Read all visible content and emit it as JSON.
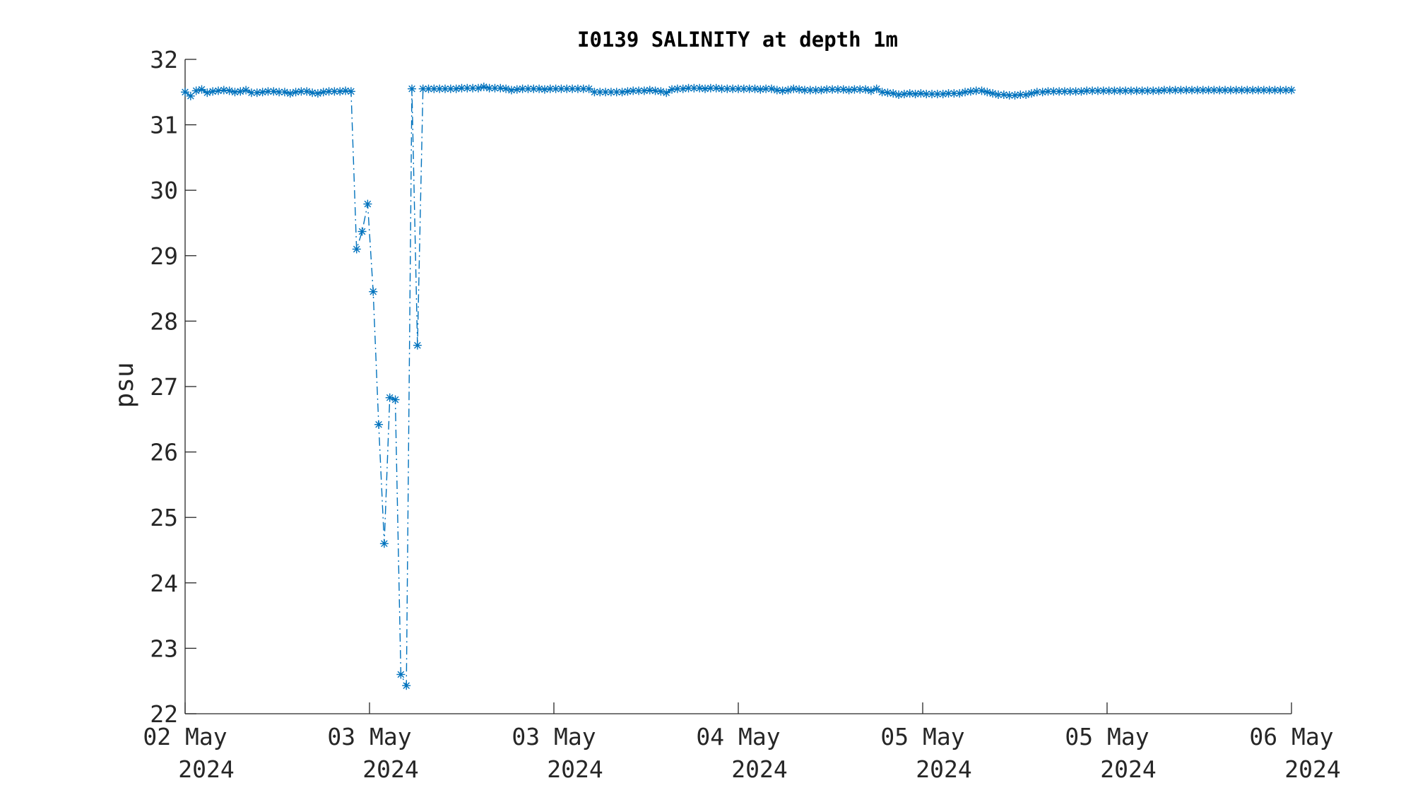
{
  "chart_data": {
    "type": "line",
    "title": "I0139 SALINITY at depth 1m",
    "xlabel": "",
    "ylabel": "psu",
    "xlim_days": [
      0,
      4
    ],
    "ylim": [
      22,
      32
    ],
    "yticks": [
      22,
      23,
      24,
      25,
      26,
      27,
      28,
      29,
      30,
      31,
      32
    ],
    "xticks": [
      {
        "pos": 0.0,
        "day": "02 May",
        "year": "2024"
      },
      {
        "pos": 0.6667,
        "day": "03 May",
        "year": "2024"
      },
      {
        "pos": 1.3333,
        "day": "03 May",
        "year": "2024"
      },
      {
        "pos": 2.0,
        "day": "04 May",
        "year": "2024"
      },
      {
        "pos": 2.6667,
        "day": "05 May",
        "year": "2024"
      },
      {
        "pos": 3.3333,
        "day": "05 May",
        "year": "2024"
      },
      {
        "pos": 4.0,
        "day": "06 May",
        "year": "2024"
      }
    ],
    "grid": false,
    "legend": "none",
    "color": "#0072BD",
    "line_style": "dash-dot",
    "marker": "asterisk",
    "series": [
      {
        "points": [
          [
            0.0,
            31.5
          ],
          [
            0.02,
            31.44
          ],
          [
            0.04,
            31.52
          ],
          [
            0.06,
            31.54
          ],
          [
            0.08,
            31.49
          ],
          [
            0.1,
            31.51
          ],
          [
            0.12,
            31.52
          ],
          [
            0.14,
            31.53
          ],
          [
            0.16,
            31.52
          ],
          [
            0.18,
            31.5
          ],
          [
            0.2,
            31.51
          ],
          [
            0.22,
            31.53
          ],
          [
            0.24,
            31.49
          ],
          [
            0.26,
            31.49
          ],
          [
            0.28,
            31.5
          ],
          [
            0.3,
            31.51
          ],
          [
            0.32,
            31.51
          ],
          [
            0.34,
            31.5
          ],
          [
            0.36,
            31.5
          ],
          [
            0.38,
            31.48
          ],
          [
            0.4,
            31.5
          ],
          [
            0.42,
            31.51
          ],
          [
            0.44,
            31.51
          ],
          [
            0.46,
            31.49
          ],
          [
            0.48,
            31.48
          ],
          [
            0.5,
            31.5
          ],
          [
            0.52,
            31.51
          ],
          [
            0.54,
            31.51
          ],
          [
            0.56,
            31.51
          ],
          [
            0.58,
            31.52
          ],
          [
            0.6,
            31.51
          ],
          [
            0.62,
            29.1
          ],
          [
            0.64,
            29.37
          ],
          [
            0.66,
            29.79
          ],
          [
            0.68,
            28.45
          ],
          [
            0.7,
            26.42
          ],
          [
            0.72,
            24.6
          ],
          [
            0.74,
            26.83
          ],
          [
            0.76,
            26.8
          ],
          [
            0.78,
            22.6
          ],
          [
            0.8,
            22.43
          ],
          [
            0.82,
            31.55
          ],
          [
            0.84,
            27.63
          ],
          [
            0.86,
            31.55
          ],
          [
            0.88,
            31.55
          ],
          [
            0.9,
            31.55
          ],
          [
            0.92,
            31.55
          ],
          [
            0.94,
            31.55
          ],
          [
            0.96,
            31.55
          ],
          [
            0.98,
            31.55
          ],
          [
            1.0,
            31.56
          ],
          [
            1.02,
            31.56
          ],
          [
            1.04,
            31.56
          ],
          [
            1.06,
            31.56
          ],
          [
            1.08,
            31.58
          ],
          [
            1.1,
            31.56
          ],
          [
            1.12,
            31.56
          ],
          [
            1.14,
            31.56
          ],
          [
            1.16,
            31.55
          ],
          [
            1.18,
            31.53
          ],
          [
            1.2,
            31.54
          ],
          [
            1.22,
            31.55
          ],
          [
            1.24,
            31.55
          ],
          [
            1.26,
            31.55
          ],
          [
            1.28,
            31.55
          ],
          [
            1.3,
            31.54
          ],
          [
            1.32,
            31.55
          ],
          [
            1.34,
            31.55
          ],
          [
            1.36,
            31.55
          ],
          [
            1.38,
            31.55
          ],
          [
            1.4,
            31.55
          ],
          [
            1.42,
            31.55
          ],
          [
            1.44,
            31.55
          ],
          [
            1.46,
            31.55
          ],
          [
            1.48,
            31.5
          ],
          [
            1.5,
            31.5
          ],
          [
            1.52,
            31.5
          ],
          [
            1.54,
            31.5
          ],
          [
            1.56,
            31.5
          ],
          [
            1.58,
            31.5
          ],
          [
            1.6,
            31.51
          ],
          [
            1.62,
            31.52
          ],
          [
            1.64,
            31.52
          ],
          [
            1.66,
            31.52
          ],
          [
            1.68,
            31.53
          ],
          [
            1.7,
            31.52
          ],
          [
            1.72,
            31.51
          ],
          [
            1.74,
            31.49
          ],
          [
            1.76,
            31.54
          ],
          [
            1.78,
            31.55
          ],
          [
            1.8,
            31.55
          ],
          [
            1.82,
            31.56
          ],
          [
            1.84,
            31.56
          ],
          [
            1.86,
            31.56
          ],
          [
            1.88,
            31.55
          ],
          [
            1.9,
            31.56
          ],
          [
            1.92,
            31.56
          ],
          [
            1.94,
            31.55
          ],
          [
            1.96,
            31.55
          ],
          [
            1.98,
            31.55
          ],
          [
            2.0,
            31.55
          ],
          [
            2.02,
            31.55
          ],
          [
            2.04,
            31.55
          ],
          [
            2.06,
            31.55
          ],
          [
            2.08,
            31.54
          ],
          [
            2.1,
            31.55
          ],
          [
            2.12,
            31.55
          ],
          [
            2.14,
            31.53
          ],
          [
            2.16,
            31.52
          ],
          [
            2.18,
            31.53
          ],
          [
            2.2,
            31.55
          ],
          [
            2.22,
            31.54
          ],
          [
            2.24,
            31.53
          ],
          [
            2.26,
            31.53
          ],
          [
            2.28,
            31.53
          ],
          [
            2.3,
            31.53
          ],
          [
            2.32,
            31.54
          ],
          [
            2.34,
            31.54
          ],
          [
            2.36,
            31.54
          ],
          [
            2.38,
            31.54
          ],
          [
            2.4,
            31.53
          ],
          [
            2.42,
            31.54
          ],
          [
            2.44,
            31.54
          ],
          [
            2.46,
            31.54
          ],
          [
            2.48,
            31.52
          ],
          [
            2.5,
            31.55
          ],
          [
            2.52,
            31.5
          ],
          [
            2.54,
            31.49
          ],
          [
            2.56,
            31.48
          ],
          [
            2.58,
            31.46
          ],
          [
            2.6,
            31.47
          ],
          [
            2.62,
            31.48
          ],
          [
            2.64,
            31.47
          ],
          [
            2.66,
            31.48
          ],
          [
            2.68,
            31.47
          ],
          [
            2.7,
            31.47
          ],
          [
            2.72,
            31.47
          ],
          [
            2.74,
            31.47
          ],
          [
            2.76,
            31.48
          ],
          [
            2.78,
            31.48
          ],
          [
            2.8,
            31.48
          ],
          [
            2.82,
            31.5
          ],
          [
            2.84,
            31.51
          ],
          [
            2.86,
            31.52
          ],
          [
            2.88,
            31.52
          ],
          [
            2.9,
            31.5
          ],
          [
            2.92,
            31.48
          ],
          [
            2.94,
            31.46
          ],
          [
            2.96,
            31.46
          ],
          [
            2.98,
            31.45
          ],
          [
            3.0,
            31.45
          ],
          [
            3.02,
            31.46
          ],
          [
            3.04,
            31.46
          ],
          [
            3.06,
            31.48
          ],
          [
            3.08,
            31.5
          ],
          [
            3.1,
            31.5
          ],
          [
            3.12,
            31.51
          ],
          [
            3.14,
            31.51
          ],
          [
            3.16,
            31.51
          ],
          [
            3.18,
            31.51
          ],
          [
            3.2,
            31.51
          ],
          [
            3.22,
            31.51
          ],
          [
            3.24,
            31.51
          ],
          [
            3.26,
            31.52
          ],
          [
            3.28,
            31.52
          ],
          [
            3.3,
            31.52
          ],
          [
            3.32,
            31.52
          ],
          [
            3.34,
            31.52
          ],
          [
            3.36,
            31.52
          ],
          [
            3.38,
            31.52
          ],
          [
            3.4,
            31.52
          ],
          [
            3.42,
            31.52
          ],
          [
            3.44,
            31.52
          ],
          [
            3.46,
            31.52
          ],
          [
            3.48,
            31.52
          ],
          [
            3.5,
            31.52
          ],
          [
            3.52,
            31.52
          ],
          [
            3.54,
            31.53
          ],
          [
            3.56,
            31.53
          ],
          [
            3.58,
            31.53
          ],
          [
            3.6,
            31.53
          ],
          [
            3.62,
            31.53
          ],
          [
            3.64,
            31.53
          ],
          [
            3.66,
            31.53
          ],
          [
            3.68,
            31.53
          ],
          [
            3.7,
            31.53
          ],
          [
            3.72,
            31.53
          ],
          [
            3.74,
            31.53
          ],
          [
            3.76,
            31.53
          ],
          [
            3.78,
            31.53
          ],
          [
            3.8,
            31.53
          ],
          [
            3.82,
            31.53
          ],
          [
            3.84,
            31.53
          ],
          [
            3.86,
            31.53
          ],
          [
            3.88,
            31.53
          ],
          [
            3.9,
            31.53
          ],
          [
            3.92,
            31.53
          ],
          [
            3.94,
            31.53
          ],
          [
            3.96,
            31.53
          ],
          [
            3.98,
            31.53
          ],
          [
            4.0,
            31.53
          ]
        ]
      }
    ]
  }
}
